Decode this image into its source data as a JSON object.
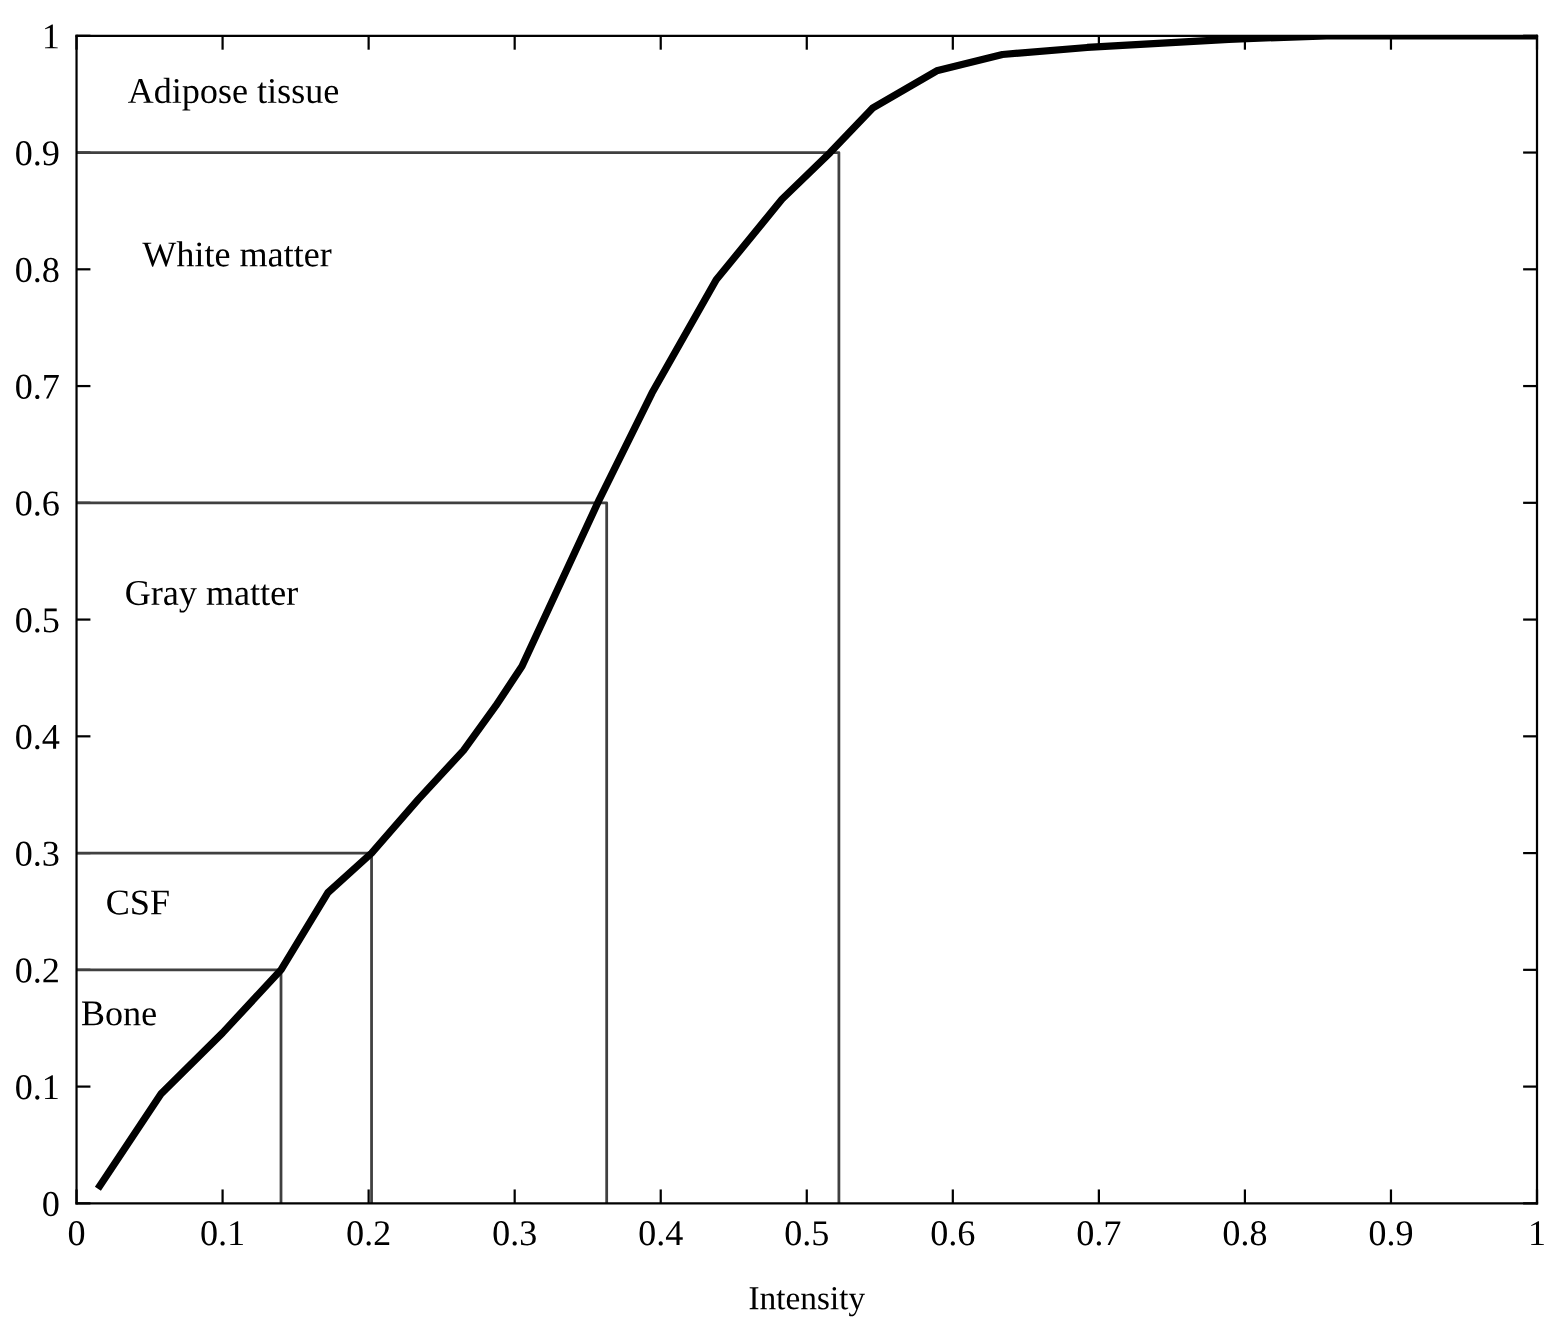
{
  "chart_data": {
    "type": "line",
    "xlabel": "Intensity",
    "xlim": [
      0,
      1
    ],
    "ylim": [
      0,
      1
    ],
    "xticks": [
      0,
      0.1,
      0.2,
      0.3,
      0.4,
      0.5,
      0.6,
      0.7,
      0.8,
      0.9,
      1
    ],
    "yticks": [
      0,
      0.1,
      0.2,
      0.3,
      0.4,
      0.5,
      0.6,
      0.7,
      0.8,
      0.9,
      1
    ],
    "grid": false,
    "marker": "none",
    "line_style": "solid",
    "series": [
      {
        "color": "#000000",
        "x": [
          0.016,
          0.058,
          0.1,
          0.14,
          0.172,
          0.202,
          0.234,
          0.265,
          0.287,
          0.305,
          0.358,
          0.394,
          0.438,
          0.483,
          0.516,
          0.545,
          0.589,
          0.634,
          0.692,
          0.789,
          0.856,
          1.0
        ],
        "values": [
          0.015,
          0.094,
          0.146,
          0.2,
          0.266,
          0.3,
          0.346,
          0.388,
          0.426,
          0.46,
          0.603,
          0.694,
          0.791,
          0.86,
          0.9,
          0.938,
          0.97,
          0.984,
          0.99,
          0.997,
          1.0,
          1.0
        ]
      },
      {
        "color": "#404040",
        "x": [
          0,
          0.14,
          0.14
        ],
        "values": [
          0.2,
          0.2,
          0
        ]
      },
      {
        "color": "#404040",
        "x": [
          0,
          0.202,
          0.202
        ],
        "values": [
          0.3,
          0.3,
          0
        ]
      },
      {
        "color": "#404040",
        "x": [
          0,
          0.363,
          0.363
        ],
        "values": [
          0.6,
          0.6,
          0
        ]
      },
      {
        "color": "#404040",
        "x": [
          0,
          0.522,
          0.522
        ],
        "values": [
          0.9,
          0.9,
          0
        ]
      }
    ],
    "annotations": [
      "Adipose tissue",
      "White matter",
      "Gray matter",
      "CSF",
      "Bone"
    ]
  }
}
